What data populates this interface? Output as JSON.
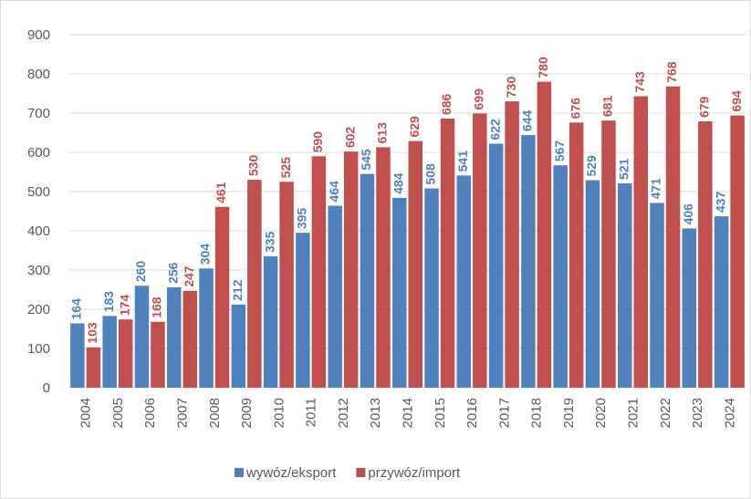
{
  "chart_data": {
    "type": "bar",
    "categories": [
      "2004",
      "2005",
      "2006",
      "2007",
      "2008",
      "2009",
      "2010",
      "2011",
      "2012",
      "2013",
      "2014",
      "2015",
      "2016",
      "2017",
      "2018",
      "2019",
      "2020",
      "2021",
      "2022",
      "2023",
      "2024"
    ],
    "series": [
      {
        "name": "wywóz/eksport",
        "color": "#4f81bd",
        "values": [
          164,
          183,
          260,
          256,
          304,
          212,
          335,
          395,
          464,
          545,
          484,
          508,
          541,
          622,
          644,
          567,
          529,
          521,
          471,
          406,
          437
        ]
      },
      {
        "name": "przywóz/import",
        "color": "#c0504d",
        "values": [
          103,
          174,
          168,
          247,
          461,
          530,
          525,
          590,
          602,
          613,
          629,
          686,
          699,
          730,
          780,
          676,
          681,
          743,
          768,
          679,
          694
        ]
      }
    ],
    "ylim": [
      0,
      900
    ],
    "yticks": [
      0,
      100,
      200,
      300,
      400,
      500,
      600,
      700,
      800,
      900
    ],
    "grid": true,
    "legend": "bottom"
  }
}
